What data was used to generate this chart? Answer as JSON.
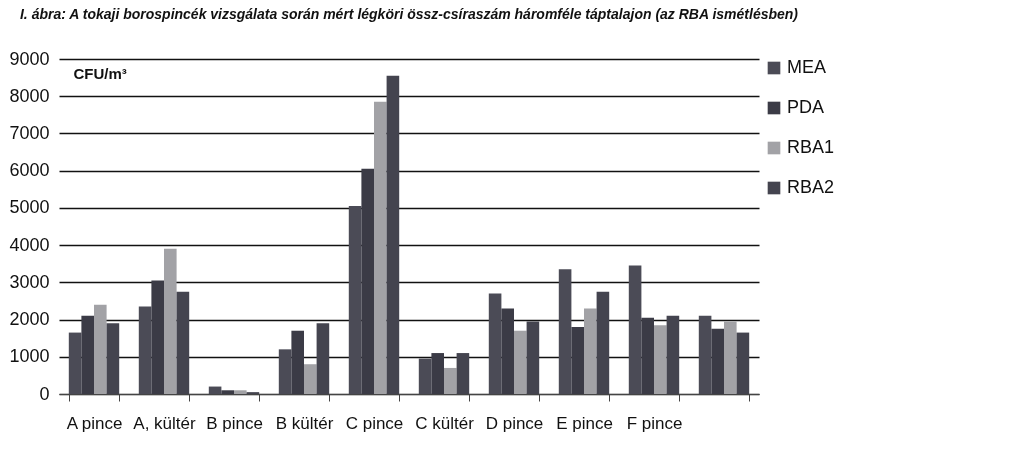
{
  "chart_data": {
    "type": "bar",
    "title": "I. ábra: A tokaji borospincék vizsgálata során mért légköri össz-csíraszám háromféle táptalajon (az RBA ismétlésben)",
    "ylabel": "CFU/m³",
    "categories": [
      "A pince",
      "A, kültér",
      "B pince",
      "B kültér",
      "C pince",
      "C kültér",
      "D pince",
      "E pince",
      "F pince",
      null
    ],
    "series": [
      {
        "name": "MEA",
        "color": "#4b4b56",
        "values": [
          1650,
          2350,
          200,
          1200,
          5050,
          950,
          2700,
          3350,
          3450,
          2100
        ]
      },
      {
        "name": "PDA",
        "color": "#3b3b46",
        "values": [
          2100,
          3050,
          100,
          1700,
          6050,
          1100,
          2300,
          1800,
          2050,
          1750
        ]
      },
      {
        "name": "RBA1",
        "color": "#a2a2a6",
        "values": [
          2400,
          3900,
          100,
          800,
          7850,
          700,
          1700,
          2300,
          1850,
          1950
        ]
      },
      {
        "name": "RBA2",
        "color": "#44444f",
        "values": [
          1900,
          2750,
          50,
          1900,
          8550,
          1100,
          1950,
          2750,
          2100,
          1650
        ]
      }
    ],
    "ylim": [
      0,
      9000
    ],
    "yticks": [
      0,
      1000,
      2000,
      3000,
      4000,
      5000,
      6000,
      7000,
      8000,
      9000
    ],
    "grid": "y",
    "legend": "right"
  }
}
